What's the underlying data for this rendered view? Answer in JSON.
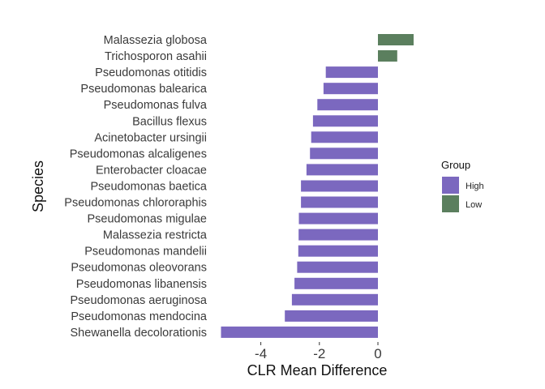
{
  "chart_data": {
    "type": "bar",
    "orientation": "horizontal",
    "xlabel": "CLR Mean Difference",
    "ylabel": "Species",
    "xlim": [
      -5.4,
      1.25
    ],
    "xticks": [
      -4,
      -2,
      0
    ],
    "xtick_labels": [
      "-4",
      "-2",
      "0"
    ],
    "grid": false,
    "legend": {
      "title": "Group",
      "position": "right",
      "items": [
        {
          "label": "High",
          "color": "#7b68bf"
        },
        {
          "label": "Low",
          "color": "#5b7f5e"
        }
      ]
    },
    "categories": [
      "Malassezia globosa",
      "Trichosporon asahii",
      "Pseudomonas otitidis",
      "Pseudomonas balearica",
      "Pseudomonas fulva",
      "Bacillus flexus",
      "Acinetobacter ursingii",
      "Pseudomonas alcaligenes",
      "Enterobacter cloacae",
      "Pseudomonas baetica",
      "Pseudomonas chlororaphis",
      "Pseudomonas migulae",
      "Malassezia restricta",
      "Pseudomonas mandelii",
      "Pseudomonas oleovorans",
      "Pseudomonas libanensis",
      "Pseudomonas aeruginosa",
      "Pseudomonas mendocina",
      "Shewanella decolorationis"
    ],
    "values": [
      1.22,
      0.66,
      -1.78,
      -1.86,
      -2.07,
      -2.22,
      -2.28,
      -2.32,
      -2.44,
      -2.63,
      -2.63,
      -2.7,
      -2.71,
      -2.72,
      -2.76,
      -2.85,
      -2.94,
      -3.18,
      -5.36
    ],
    "groups": [
      "Low",
      "Low",
      "High",
      "High",
      "High",
      "High",
      "High",
      "High",
      "High",
      "High",
      "High",
      "High",
      "High",
      "High",
      "High",
      "High",
      "High",
      "High",
      "High"
    ]
  }
}
